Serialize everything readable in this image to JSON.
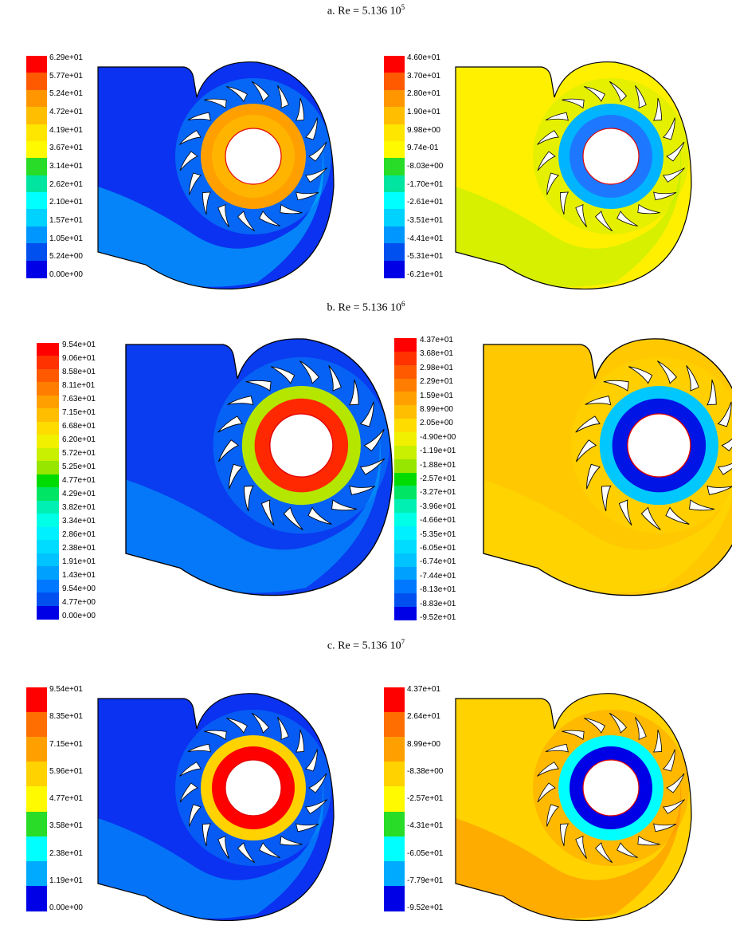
{
  "rows": [
    {
      "title_main": "a. Re = 5.136 10",
      "title_exp": "5",
      "left": {
        "legend_labels": [
          "6.29e+01",
          "5.77e+01",
          "5.24e+01",
          "4.72e+01",
          "4.19e+01",
          "3.67e+01",
          "3.14e+01",
          "2.62e+01",
          "2.10e+01",
          "1.57e+01",
          "1.05e+01",
          "5.24e+00",
          "0.00e+00"
        ],
        "colors": [
          "#ff0000",
          "#ff5a00",
          "#ff9600",
          "#ffbe00",
          "#ffe600",
          "#fffa00",
          "#28dc28",
          "#00e6a0",
          "#00ffff",
          "#00d2ff",
          "#0096ff",
          "#0050f0",
          "#0000e6"
        ],
        "bg": "#0a32f0",
        "ring_outer": "#ffa000",
        "ring_inner": "#ffb400",
        "mid": "#00c8ff"
      },
      "right": {
        "legend_labels": [
          "4.60e+01",
          "3.70e+01",
          "2.80e+01",
          "1.90e+01",
          "9.98e+00",
          "9.74e-01",
          "-8.03e+00",
          "-1.70e+01",
          "-2.61e+01",
          "-3.51e+01",
          "-4.41e+01",
          "-5.31e+01",
          "-6.21e+01"
        ],
        "colors": [
          "#ff0000",
          "#ff5a00",
          "#ff9600",
          "#ffbe00",
          "#ffe600",
          "#fffa00",
          "#28dc28",
          "#00e6a0",
          "#00ffff",
          "#00d2ff",
          "#0096ff",
          "#0050f0",
          "#0000e6"
        ],
        "bg": "#fff000",
        "ring_outer": "#00b4ff",
        "ring_inner": "#1e78ff",
        "mid": "#b4f000"
      }
    },
    {
      "title_main": "b. Re = 5.136 10",
      "title_exp": "6",
      "left": {
        "legend_labels": [
          "9.54e+01",
          "9.06e+01",
          "8.58e+01",
          "8.11e+01",
          "7.63e+01",
          "7.15e+01",
          "6.68e+01",
          "6.20e+01",
          "5.72e+01",
          "5.25e+01",
          "4.77e+01",
          "4.29e+01",
          "3.82e+01",
          "3.34e+01",
          "2.86e+01",
          "2.38e+01",
          "1.91e+01",
          "1.43e+01",
          "9.54e+00",
          "4.77e+00",
          "0.00e+00"
        ],
        "colors": [
          "#ff0000",
          "#ff3200",
          "#ff5a00",
          "#ff7d00",
          "#ffa000",
          "#ffbe00",
          "#ffdc00",
          "#f0f000",
          "#c8f000",
          "#96e600",
          "#00dc00",
          "#00e664",
          "#00f0b4",
          "#00ffe6",
          "#00f0ff",
          "#00dcff",
          "#00c3ff",
          "#00a0ff",
          "#0078ff",
          "#0050f0",
          "#0000e6"
        ],
        "bg": "#0a3cf0",
        "ring_outer": "#b4e600",
        "ring_inner": "#ff2800",
        "mid": "#00aaff"
      },
      "right": {
        "legend_labels": [
          "4.37e+01",
          "3.68e+01",
          "2.98e+01",
          "2.29e+01",
          "1.59e+01",
          "8.99e+00",
          "2.05e+00",
          "-4.90e+00",
          "-1.19e+01",
          "-1.88e+01",
          "-2.57e+01",
          "-3.27e+01",
          "-3.96e+01",
          "-4.66e+01",
          "-5.35e+01",
          "-6.05e+01",
          "-6.74e+01",
          "-7.44e+01",
          "-8.13e+01",
          "-8.83e+01",
          "-9.52e+01"
        ],
        "colors": [
          "#ff0000",
          "#ff3200",
          "#ff5a00",
          "#ff7d00",
          "#ffa000",
          "#ffbe00",
          "#ffdc00",
          "#f0f000",
          "#c8f000",
          "#96e600",
          "#00dc00",
          "#00e664",
          "#00f0b4",
          "#00ffe6",
          "#00f0ff",
          "#00dcff",
          "#00c3ff",
          "#00a0ff",
          "#0078ff",
          "#0050f0",
          "#0000e6"
        ],
        "bg": "#ffc800",
        "ring_outer": "#00c8ff",
        "ring_inner": "#0014e6",
        "mid": "#ffdc00"
      }
    },
    {
      "title_main": "c. Re = 5.136 10",
      "title_exp": "7",
      "left": {
        "legend_labels": [
          "9.54e+01",
          "8.35e+01",
          "7.15e+01",
          "5.96e+01",
          "4.77e+01",
          "3.58e+01",
          "2.38e+01",
          "1.19e+01",
          "0.00e+00"
        ],
        "colors": [
          "#ff0000",
          "#ff6e00",
          "#ffa000",
          "#ffd200",
          "#fffa00",
          "#28dc28",
          "#00ffff",
          "#00aaff",
          "#0000e6"
        ],
        "bg": "#0a32f0",
        "ring_outer": "#ffd200",
        "ring_inner": "#ff0000",
        "mid": "#00aaff"
      },
      "right": {
        "legend_labels": [
          "4.37e+01",
          "2.64e+01",
          "8.99e+00",
          "-8.38e+00",
          "-2.57e+01",
          "-4.31e+01",
          "-6.05e+01",
          "-7.79e+01",
          "-9.52e+01"
        ],
        "colors": [
          "#ff0000",
          "#ff6e00",
          "#ffa000",
          "#ffd200",
          "#fffa00",
          "#28dc28",
          "#00ffff",
          "#00aaff",
          "#0000e6"
        ],
        "bg": "#ffd200",
        "ring_outer": "#00ffff",
        "ring_inner": "#0000e6",
        "mid": "#ff8c00"
      }
    }
  ]
}
